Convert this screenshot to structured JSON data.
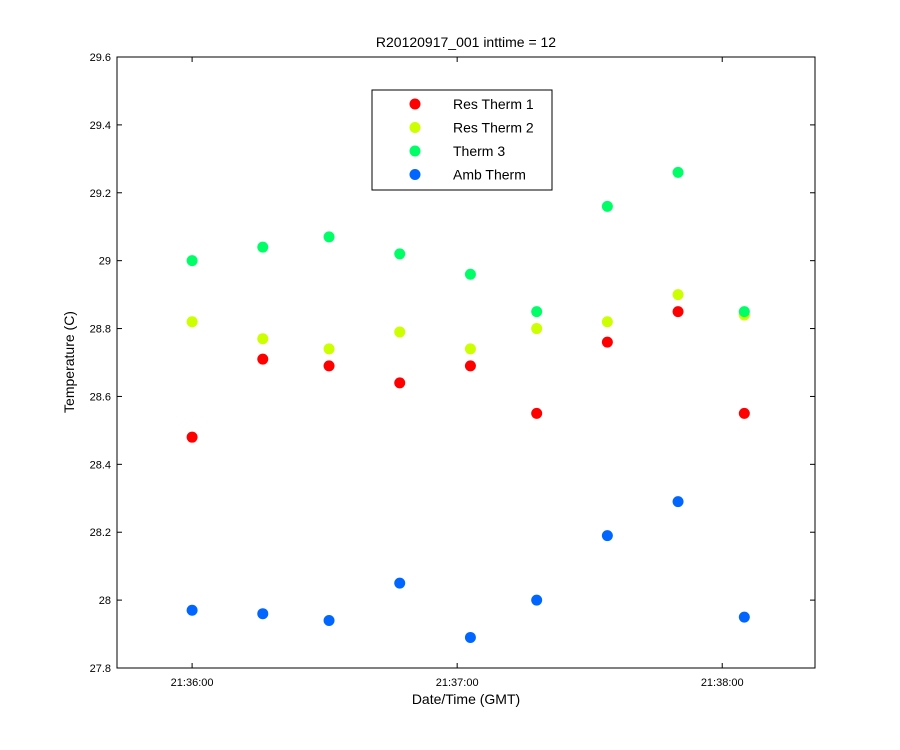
{
  "chart_data": {
    "type": "scatter",
    "title": "R20120917_001 inttime = 12",
    "xlabel": "Date/Time (GMT)",
    "ylabel": "Temperature (C)",
    "ylim": [
      27.8,
      29.6
    ],
    "xlim": [
      "21:35:43",
      "21:38:21"
    ],
    "x_ticks": [
      "21:36:00",
      "21:37:00",
      "21:38:00"
    ],
    "y_ticks": [
      "27.8",
      "28",
      "28.2",
      "28.4",
      "28.6",
      "28.8",
      "29",
      "29.2",
      "29.4",
      "29.6"
    ],
    "x": [
      "21:36:00",
      "21:36:16",
      "21:36:31",
      "21:36:47",
      "21:37:03",
      "21:37:18",
      "21:37:34",
      "21:37:50",
      "21:38:05"
    ],
    "grid": false,
    "legend_position": "top-center",
    "series": [
      {
        "name": "Res Therm 1",
        "color": "#ff0000",
        "values": [
          28.48,
          28.71,
          28.69,
          28.64,
          28.69,
          28.55,
          28.76,
          28.85,
          28.55
        ]
      },
      {
        "name": "Res Therm 2",
        "color": "#ccff00",
        "values": [
          28.82,
          28.77,
          28.74,
          28.79,
          28.74,
          28.8,
          28.82,
          28.9,
          28.84
        ]
      },
      {
        "name": "Therm 3",
        "color": "#00ff66",
        "values": [
          29.0,
          29.04,
          29.07,
          29.02,
          28.96,
          28.85,
          29.16,
          29.26,
          28.85
        ]
      },
      {
        "name": "Amb Therm",
        "color": "#0066ff",
        "values": [
          27.97,
          27.96,
          27.94,
          28.05,
          27.89,
          28.0,
          28.19,
          28.29,
          27.95
        ]
      }
    ]
  }
}
